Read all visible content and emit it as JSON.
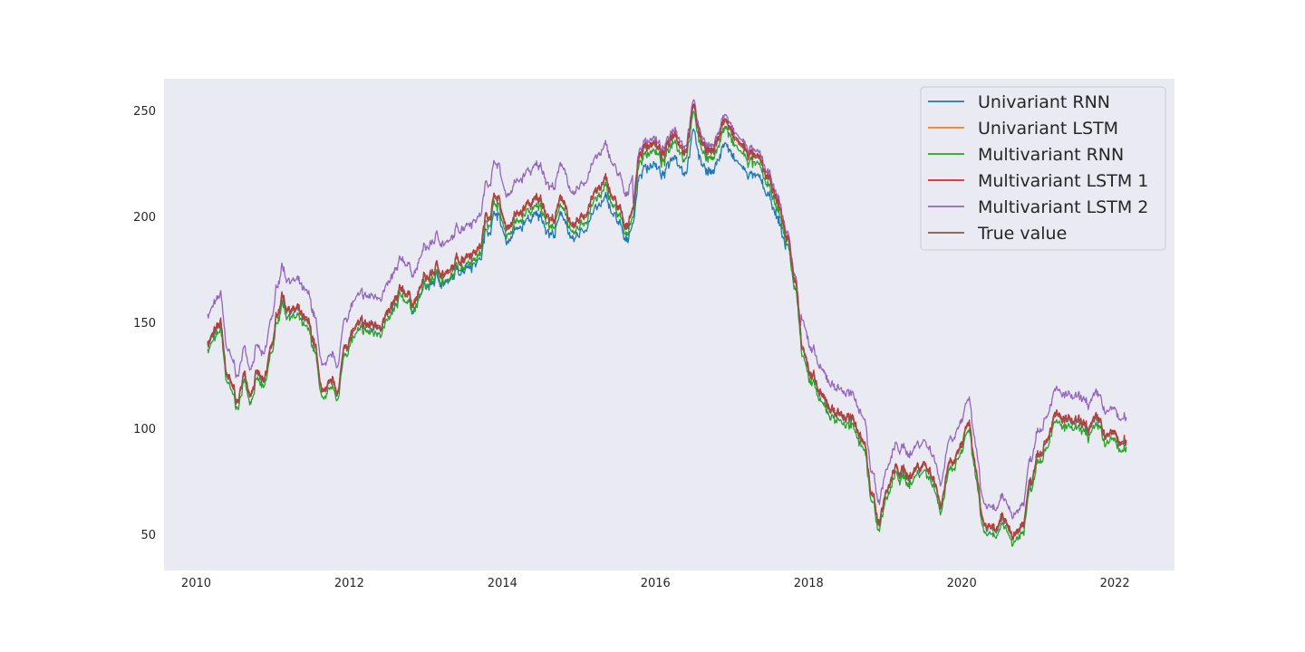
{
  "chart_data": {
    "type": "line",
    "x_axis": {
      "kind": "year",
      "range": [
        2009.58,
        2022.78
      ],
      "ticks": [
        2010,
        2012,
        2014,
        2016,
        2018,
        2020,
        2022
      ],
      "tick_labels": [
        "2010",
        "2012",
        "2014",
        "2016",
        "2018",
        "2020",
        "2022"
      ]
    },
    "y_axis": {
      "range": [
        33,
        265
      ],
      "ticks": [
        50,
        100,
        150,
        200,
        250
      ],
      "tick_labels": [
        "50",
        "100",
        "150",
        "200",
        "250"
      ]
    },
    "grid": false,
    "legend": {
      "placement": "top-right"
    },
    "background": "#eaeaf2",
    "truth_anchors": [
      [
        2010.15,
        141
      ],
      [
        2010.25,
        144
      ],
      [
        2010.32,
        148
      ],
      [
        2010.4,
        125
      ],
      [
        2010.48,
        117
      ],
      [
        2010.55,
        112
      ],
      [
        2010.62,
        125
      ],
      [
        2010.7,
        118
      ],
      [
        2010.8,
        125
      ],
      [
        2010.88,
        120
      ],
      [
        2011.0,
        140
      ],
      [
        2011.07,
        155
      ],
      [
        2011.12,
        163
      ],
      [
        2011.18,
        158
      ],
      [
        2011.3,
        155
      ],
      [
        2011.45,
        148
      ],
      [
        2011.55,
        140
      ],
      [
        2011.62,
        120
      ],
      [
        2011.7,
        115
      ],
      [
        2011.78,
        120
      ],
      [
        2011.85,
        118
      ],
      [
        2011.95,
        140
      ],
      [
        2012.1,
        147
      ],
      [
        2012.3,
        148
      ],
      [
        2012.5,
        152
      ],
      [
        2012.6,
        158
      ],
      [
        2012.7,
        165
      ],
      [
        2012.85,
        160
      ],
      [
        2013.0,
        170
      ],
      [
        2013.15,
        175
      ],
      [
        2013.3,
        172
      ],
      [
        2013.45,
        180
      ],
      [
        2013.55,
        183
      ],
      [
        2013.7,
        185
      ],
      [
        2013.8,
        200
      ],
      [
        2013.92,
        210
      ],
      [
        2014.05,
        195
      ],
      [
        2014.2,
        200
      ],
      [
        2014.35,
        205
      ],
      [
        2014.5,
        207
      ],
      [
        2014.65,
        198
      ],
      [
        2014.8,
        208
      ],
      [
        2014.92,
        192
      ],
      [
        2015.05,
        200
      ],
      [
        2015.2,
        210
      ],
      [
        2015.35,
        215
      ],
      [
        2015.5,
        205
      ],
      [
        2015.62,
        192
      ],
      [
        2015.7,
        205
      ],
      [
        2015.8,
        230
      ],
      [
        2015.95,
        235
      ],
      [
        2016.1,
        228
      ],
      [
        2016.25,
        240
      ],
      [
        2016.38,
        232
      ],
      [
        2016.5,
        250
      ],
      [
        2016.6,
        235
      ],
      [
        2016.75,
        230
      ],
      [
        2016.9,
        245
      ],
      [
        2017.05,
        235
      ],
      [
        2017.2,
        230
      ],
      [
        2017.35,
        225
      ],
      [
        2017.5,
        215
      ],
      [
        2017.6,
        205
      ],
      [
        2017.72,
        190
      ],
      [
        2017.82,
        170
      ],
      [
        2017.92,
        140
      ],
      [
        2018.05,
        122
      ],
      [
        2018.2,
        112
      ],
      [
        2018.35,
        108
      ],
      [
        2018.5,
        105
      ],
      [
        2018.62,
        100
      ],
      [
        2018.72,
        95
      ],
      [
        2018.82,
        70
      ],
      [
        2018.92,
        56
      ],
      [
        2019.02,
        70
      ],
      [
        2019.15,
        80
      ],
      [
        2019.3,
        78
      ],
      [
        2019.5,
        83
      ],
      [
        2019.62,
        78
      ],
      [
        2019.72,
        65
      ],
      [
        2019.85,
        85
      ],
      [
        2020.0,
        92
      ],
      [
        2020.1,
        100
      ],
      [
        2020.18,
        80
      ],
      [
        2020.28,
        55
      ],
      [
        2020.4,
        50
      ],
      [
        2020.55,
        55
      ],
      [
        2020.7,
        50
      ],
      [
        2020.8,
        55
      ],
      [
        2020.9,
        75
      ],
      [
        2021.0,
        90
      ],
      [
        2021.1,
        95
      ],
      [
        2021.2,
        105
      ],
      [
        2021.35,
        103
      ],
      [
        2021.5,
        101
      ],
      [
        2021.65,
        100
      ],
      [
        2021.8,
        102
      ],
      [
        2021.9,
        95
      ],
      [
        2022.0,
        97
      ],
      [
        2022.08,
        92
      ],
      [
        2022.15,
        92
      ]
    ],
    "series": [
      {
        "name": "Univariant RNN",
        "color": "#1f77b4",
        "offset_model": "rnn_univariate"
      },
      {
        "name": "Univariant LSTM",
        "color": "#ff7f0e",
        "offset_model": "flat",
        "offset": 0
      },
      {
        "name": "Multivariant RNN",
        "color": "#2ca02c",
        "offset_model": "flat",
        "offset": -3
      },
      {
        "name": "Multivariant LSTM 1",
        "color": "#d62728",
        "offset_model": "flat",
        "offset": 1
      },
      {
        "name": "Multivariant LSTM 2",
        "color": "#9467bd",
        "offset_model": "lstm2"
      },
      {
        "name": "True value",
        "color": "#8c564b",
        "offset_model": "flat",
        "offset": 0
      }
    ]
  }
}
